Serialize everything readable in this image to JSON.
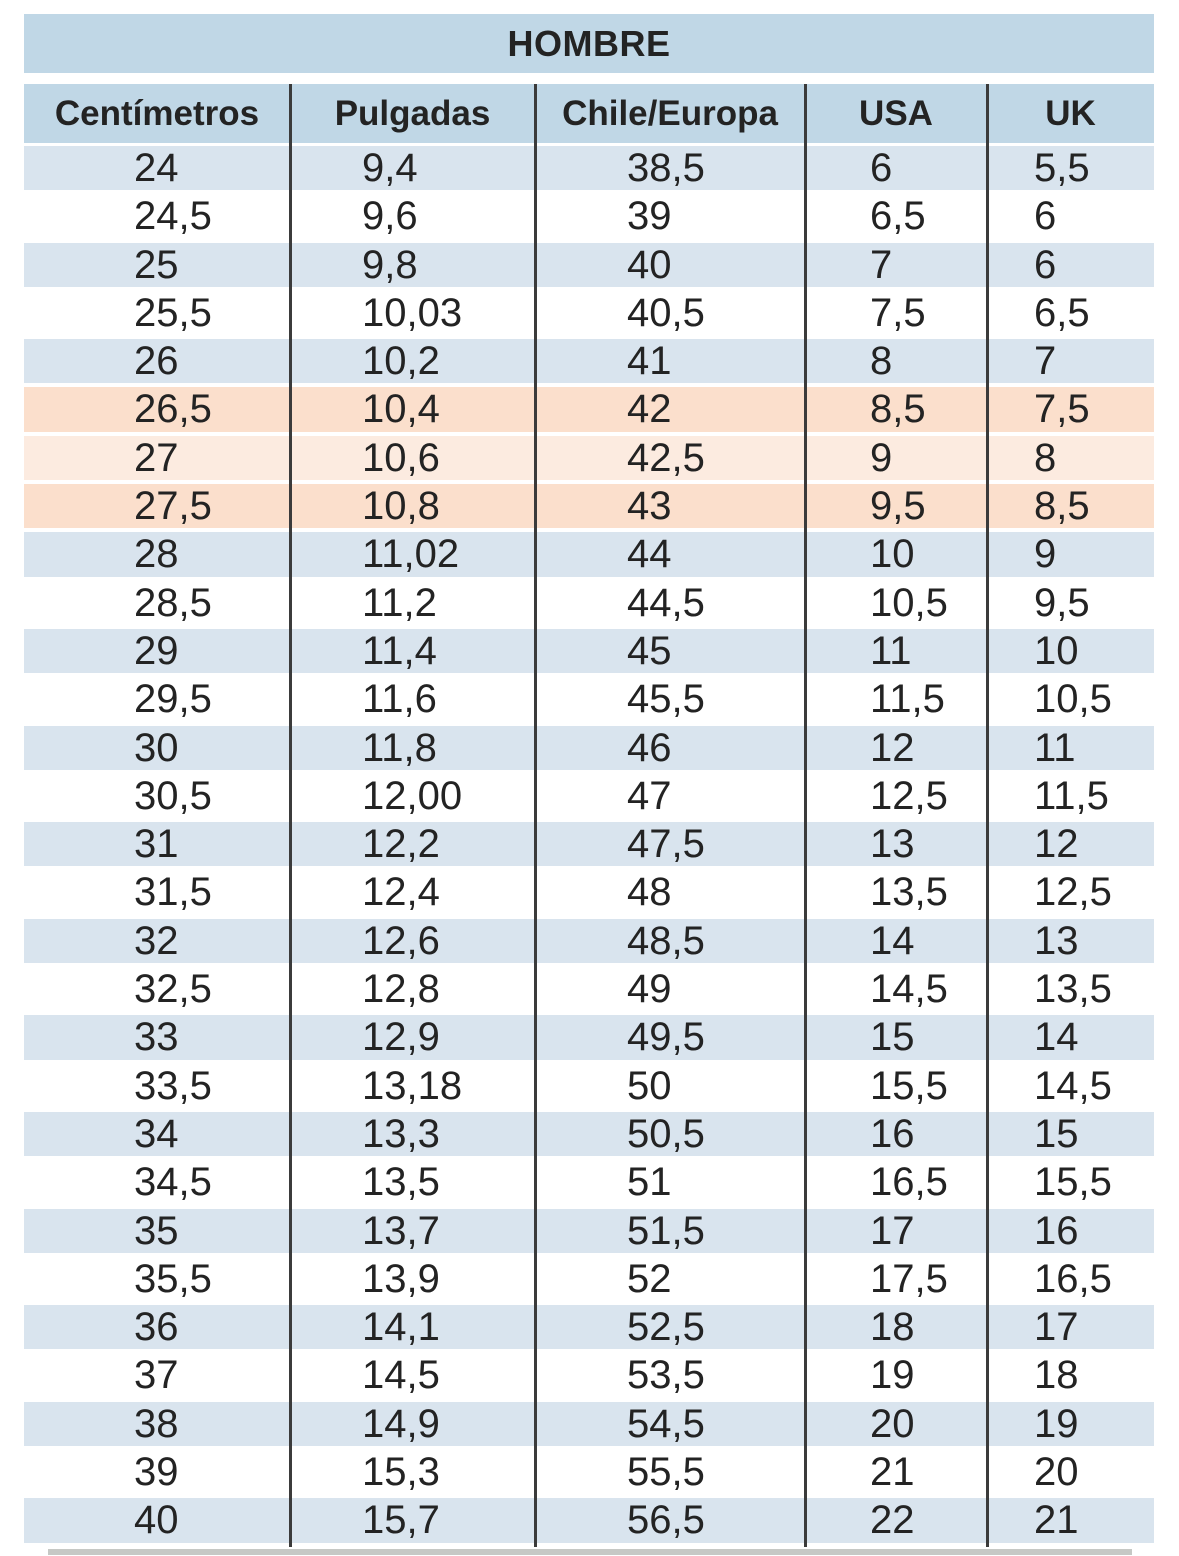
{
  "chart_data": {
    "type": "table",
    "title": "HOMBRE",
    "columns": [
      "Centímetros",
      "Pulgadas",
      "Chile/Europa",
      "USA",
      "UK"
    ],
    "rows": [
      {
        "values": [
          "24",
          "9,4",
          "38,5",
          "6",
          "5,5"
        ],
        "highlight": "blue"
      },
      {
        "values": [
          "24,5",
          "9,6",
          "39",
          "6,5",
          "6"
        ],
        "highlight": "white"
      },
      {
        "values": [
          "25",
          "9,8",
          "40",
          "7",
          "6"
        ],
        "highlight": "blue"
      },
      {
        "values": [
          "25,5",
          "10,03",
          "40,5",
          "7,5",
          "6,5"
        ],
        "highlight": "white"
      },
      {
        "values": [
          "26",
          "10,2",
          "41",
          "8",
          "7"
        ],
        "highlight": "blue"
      },
      {
        "values": [
          "26,5",
          "10,4",
          "42",
          "8,5",
          "7,5"
        ],
        "highlight": "orange"
      },
      {
        "values": [
          "27",
          "10,6",
          "42,5",
          "9",
          "8"
        ],
        "highlight": "orange_light"
      },
      {
        "values": [
          "27,5",
          "10,8",
          "43",
          "9,5",
          "8,5"
        ],
        "highlight": "orange"
      },
      {
        "values": [
          "28",
          "11,02",
          "44",
          "10",
          "9"
        ],
        "highlight": "blue"
      },
      {
        "values": [
          "28,5",
          "11,2",
          "44,5",
          "10,5",
          "9,5"
        ],
        "highlight": "white"
      },
      {
        "values": [
          "29",
          "11,4",
          "45",
          "11",
          "10"
        ],
        "highlight": "blue"
      },
      {
        "values": [
          "29,5",
          "11,6",
          "45,5",
          "11,5",
          "10,5"
        ],
        "highlight": "white"
      },
      {
        "values": [
          "30",
          "11,8",
          "46",
          "12",
          "11"
        ],
        "highlight": "blue"
      },
      {
        "values": [
          "30,5",
          "12,00",
          "47",
          "12,5",
          "11,5"
        ],
        "highlight": "white"
      },
      {
        "values": [
          "31",
          "12,2",
          "47,5",
          "13",
          "12"
        ],
        "highlight": "blue"
      },
      {
        "values": [
          "31,5",
          "12,4",
          "48",
          "13,5",
          "12,5"
        ],
        "highlight": "white"
      },
      {
        "values": [
          "32",
          "12,6",
          "48,5",
          "14",
          "13"
        ],
        "highlight": "blue"
      },
      {
        "values": [
          "32,5",
          "12,8",
          "49",
          "14,5",
          "13,5"
        ],
        "highlight": "white"
      },
      {
        "values": [
          "33",
          "12,9",
          "49,5",
          "15",
          "14"
        ],
        "highlight": "blue"
      },
      {
        "values": [
          "33,5",
          "13,18",
          "50",
          "15,5",
          "14,5"
        ],
        "highlight": "white"
      },
      {
        "values": [
          "34",
          "13,3",
          "50,5",
          "16",
          "15"
        ],
        "highlight": "blue"
      },
      {
        "values": [
          "34,5",
          "13,5",
          "51",
          "16,5",
          "15,5"
        ],
        "highlight": "white"
      },
      {
        "values": [
          "35",
          "13,7",
          "51,5",
          "17",
          "16"
        ],
        "highlight": "blue"
      },
      {
        "values": [
          "35,5",
          "13,9",
          "52",
          "17,5",
          "16,5"
        ],
        "highlight": "white"
      },
      {
        "values": [
          "36",
          "14,1",
          "52,5",
          "18",
          "17"
        ],
        "highlight": "blue"
      },
      {
        "values": [
          "37",
          "14,5",
          "53,5",
          "19",
          "18"
        ],
        "highlight": "white"
      },
      {
        "values": [
          "38",
          "14,9",
          "54,5",
          "20",
          "19"
        ],
        "highlight": "blue"
      },
      {
        "values": [
          "39",
          "15,3",
          "55,5",
          "21",
          "20"
        ],
        "highlight": "white"
      },
      {
        "values": [
          "40",
          "15,7",
          "56,5",
          "22",
          "21"
        ],
        "highlight": "blue"
      }
    ],
    "layout_hints": {
      "header_position": "top",
      "grid": "vertical-lines-only",
      "row_striping": "alternating"
    }
  },
  "colors": {
    "header_bg": "#c0d7e6",
    "row_blue": "#d9e4ee",
    "row_white": "#ffffff",
    "row_orange": "#fbdfcc",
    "row_orange_light": "#fcebe0",
    "divider": "#3b3b3b",
    "text": "#232323",
    "bottom_strip": "#c6c8c5"
  }
}
